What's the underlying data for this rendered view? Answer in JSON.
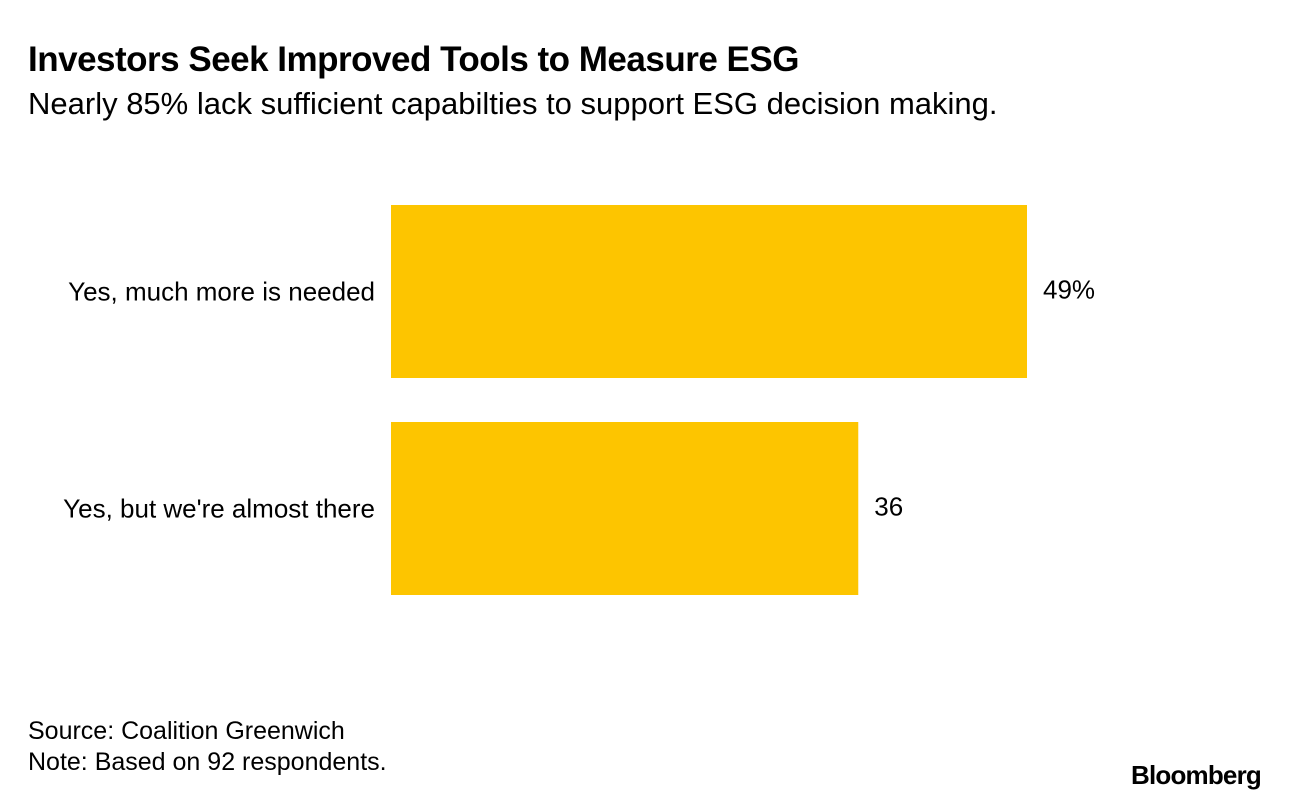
{
  "header": {
    "title": "Investors Seek Improved Tools to Measure ESG",
    "subtitle": "Nearly 85% lack sufficient capabilties to support ESG decision making."
  },
  "chart_data": {
    "type": "bar",
    "orientation": "horizontal",
    "title": "Investors Seek Improved Tools to Measure ESG",
    "subtitle": "Nearly 85% lack sufficient capabilties to support ESG decision making.",
    "categories": [
      "Yes, much more is needed",
      "Yes, but we're almost there"
    ],
    "values": [
      49,
      36
    ],
    "value_labels": [
      "49%",
      "36"
    ],
    "xlabel": "",
    "ylabel": "",
    "xlim": [
      0,
      49
    ],
    "grid": false,
    "bar_color": "#fdc500"
  },
  "footer": {
    "source": "Source: Coalition Greenwich",
    "note": "Note: Based on 92 respondents."
  },
  "brand": "Bloomberg"
}
